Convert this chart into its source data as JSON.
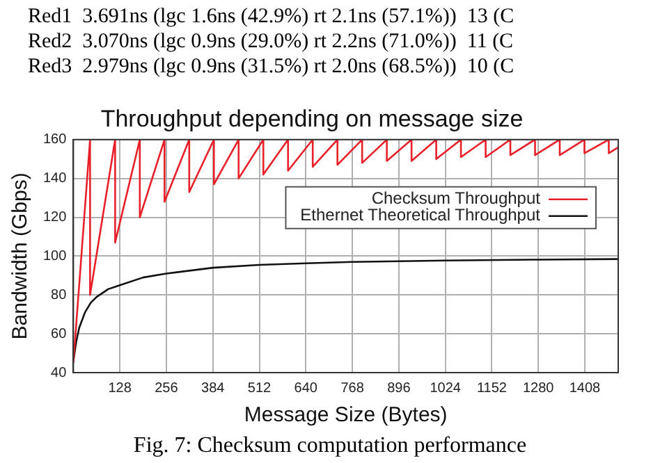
{
  "chart_data": {
    "type": "line",
    "title": "Throughput depending on message size",
    "xlabel": "Message Size (Bytes)",
    "ylabel": "Bandwidth (Gbps)",
    "annotations": [
      "Red1  3.691ns (lgc 1.6ns (42.9%) rt 2.1ns (57.1%))  13 (C",
      "Red2  3.070ns (lgc 0.9ns (29.0%) rt 2.2ns (71.0%))  11 (C",
      "Red3  2.979ns (lgc 0.9ns (31.5%) rt 2.0ns (68.5%))  10 (C",
      "Fig. 7: Checksum computation performance"
    ],
    "xlim": [
      0,
      1500
    ],
    "xticks": [
      128,
      256,
      384,
      512,
      640,
      768,
      896,
      1024,
      1152,
      1280,
      1408
    ],
    "ylim": [
      40,
      160
    ],
    "yticks": [
      40,
      60,
      80,
      100,
      120,
      140,
      160
    ],
    "grid": true,
    "legend": "top right",
    "marker": "none",
    "line_style": "solid",
    "series": [
      {
        "name": "Checksum Throughput",
        "color": "#e8202a",
        "x": [
          0,
          46,
          46,
          115,
          115,
          183,
          183,
          251,
          251,
          319,
          319,
          387,
          387,
          455,
          455,
          523,
          523,
          591,
          591,
          659,
          659,
          727,
          727,
          795,
          795,
          863,
          863,
          931,
          931,
          999,
          999,
          1067,
          1067,
          1135,
          1135,
          1203,
          1203,
          1271,
          1271,
          1339,
          1339,
          1407,
          1407,
          1474,
          1474,
          1500
        ],
        "values": [
          45,
          160,
          80,
          160,
          107,
          160,
          120,
          160,
          128,
          160,
          133,
          160,
          137,
          160,
          140,
          160,
          142,
          160,
          144,
          160,
          146,
          160,
          147,
          160,
          148,
          160,
          149,
          160,
          149,
          160,
          150,
          160,
          151,
          160,
          151,
          160,
          152,
          160,
          152,
          160,
          152,
          160,
          153,
          160,
          153,
          156
        ]
      },
      {
        "name": "Ethernet Theoretical Throughput",
        "color": "#111111",
        "x": [
          0,
          8,
          16,
          32,
          48,
          64,
          96,
          128,
          192,
          256,
          384,
          512,
          640,
          768,
          1024,
          1280,
          1500
        ],
        "values": [
          46,
          56,
          63,
          71,
          76,
          79,
          83,
          85,
          89,
          91,
          94,
          95.5,
          96.3,
          97,
          97.7,
          98.2,
          98.5
        ]
      }
    ]
  }
}
